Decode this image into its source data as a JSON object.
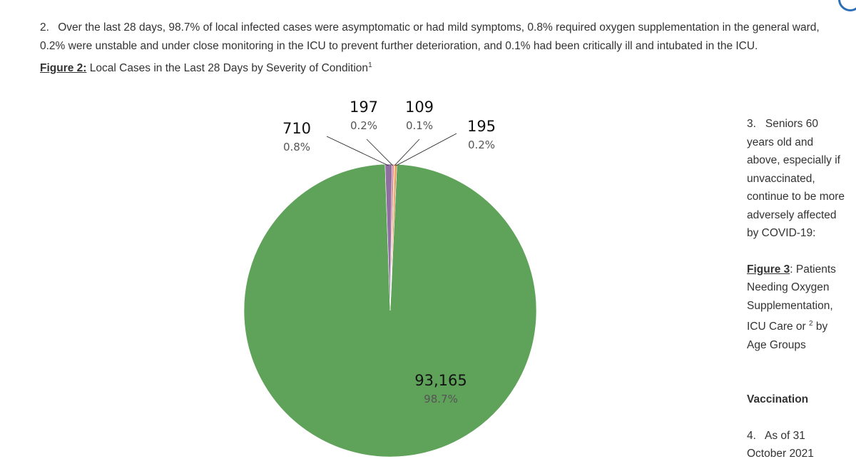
{
  "paragraph2": {
    "number": "2.",
    "text": "Over the last 28 days, 98.7% of local infected cases were asymptomatic or had mild symptoms, 0.8% required oxygen supplementation in the general ward, 0.2% were unstable and under close monitoring in the ICU to prevent further deterioration, and 0.1% had been critically ill and intubated in the ICU."
  },
  "figure2": {
    "label": "Figure 2:",
    "caption": " Local Cases in the Last 28 Days by Severity of Condition",
    "footnote": "1"
  },
  "chart_data": {
    "type": "pie",
    "title": "",
    "slices": [
      {
        "value": 93165,
        "value_label": "93,165",
        "percent_label": "98.7%",
        "color": "#5fa259"
      },
      {
        "value": 710,
        "value_label": "710",
        "percent_label": "0.8%",
        "color": "#8e6fa0"
      },
      {
        "value": 197,
        "value_label": "197",
        "percent_label": "0.2%",
        "color": "#d97b8c"
      },
      {
        "value": 109,
        "value_label": "109",
        "percent_label": "0.1%",
        "color": "#f1b43a"
      },
      {
        "value": 195,
        "value_label": "195",
        "percent_label": "0.2%",
        "color": "#e58a4c"
      }
    ]
  },
  "sidebar": {
    "para3_number": "3.",
    "para3_text": "Seniors 60 years old and above, especially if unvaccinated, continue to be more adversely affected by COVID-19:",
    "figure3_label": "Figure 3",
    "figure3_caption_a": ": Patients Needing Oxygen Supplementation, ICU Care or ",
    "figure3_footnote": "2",
    "figure3_caption_b": " by Age Groups",
    "vaccination_heading": "Vaccination",
    "para4_number": "4.",
    "para4_text": "As of 31 October 2021"
  }
}
